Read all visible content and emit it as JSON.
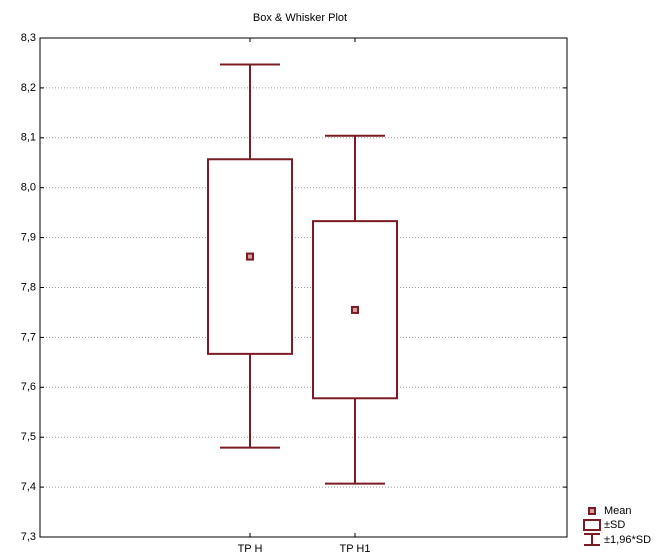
{
  "chart_data": {
    "type": "box",
    "title": "Box & Whisker Plot",
    "categories": [
      "TP H",
      "TP H1"
    ],
    "mean": [
      7.862,
      7.755
    ],
    "box_lower": [
      7.667,
      7.578
    ],
    "box_upper": [
      8.057,
      7.933
    ],
    "whisker_lower": [
      7.479,
      7.407
    ],
    "whisker_upper": [
      8.247,
      8.104
    ],
    "color": "#7b1c24",
    "legend": [
      "Mean",
      "±SD",
      "±1,96*SD"
    ],
    "legend_position": "lower right",
    "grid": true,
    "ylim": [
      7.3,
      8.3
    ],
    "yticks": [
      {
        "value": 7.3,
        "label": "7,3"
      },
      {
        "value": 7.4,
        "label": "7,4"
      },
      {
        "value": 7.5,
        "label": "7,5"
      },
      {
        "value": 7.6,
        "label": "7,6"
      },
      {
        "value": 7.7,
        "label": "7,7"
      },
      {
        "value": 7.8,
        "label": "7,8"
      },
      {
        "value": 7.9,
        "label": "7,9"
      },
      {
        "value": 8.0,
        "label": "8,0"
      },
      {
        "value": 8.1,
        "label": "8,1"
      },
      {
        "value": 8.2,
        "label": "8,2"
      },
      {
        "value": 8.3,
        "label": "8,3"
      }
    ]
  }
}
